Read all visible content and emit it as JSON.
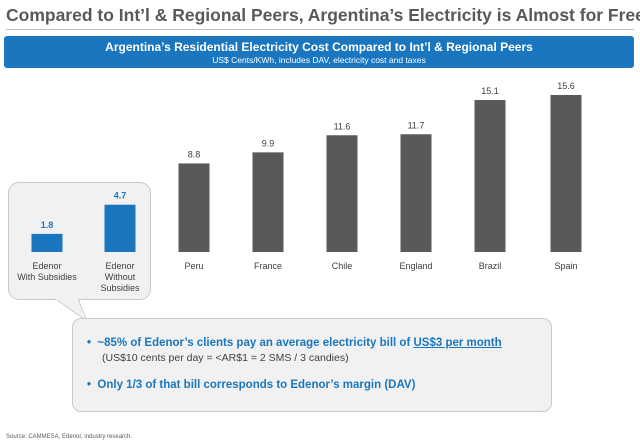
{
  "slide": {
    "title": "Compared to Int’l & Regional Peers, Argentina’s Electricity is Almost for Free",
    "banner_title": "Argentina’s Residential Electricity Cost Compared to Int’l & Regional Peers",
    "banner_subtitle": "US$ Cents/KWh, includes DAV, electricity cost and taxes",
    "source": "Source: CAMMESA, Edenor, industry research."
  },
  "callout": {
    "bullet1_prefix": "~85% of Edenor’s clients pay an average electricity bill of ",
    "bullet1_highlight": "US$3 per month",
    "bullet1_sub": "(US$10 cents per day = <AR$1 = 2 SMS / 3 candies)",
    "bullet2": "Only 1/3 of that bill corresponds to Edenor’s margin (DAV)"
  },
  "chart_data": {
    "type": "bar",
    "categories": [
      [
        "Edenor",
        "With Subsidies"
      ],
      [
        "Edenor",
        "Without",
        "Subsidies"
      ],
      [
        "Peru"
      ],
      [
        "France"
      ],
      [
        "Chile"
      ],
      [
        "England"
      ],
      [
        "Brazil"
      ],
      [
        "Spain"
      ]
    ],
    "values": [
      1.8,
      4.7,
      8.8,
      9.9,
      11.6,
      11.7,
      15.1,
      15.6
    ],
    "value_labels": [
      "1.8",
      "4.7",
      "8.8",
      "9.9",
      "11.6",
      "11.7",
      "15.1",
      "15.6"
    ],
    "colors": [
      "#1a76bf",
      "#1a76bf",
      "#595959",
      "#595959",
      "#595959",
      "#595959",
      "#595959",
      "#595959"
    ],
    "label_colors": [
      "#1a76bf",
      "#1a76bf",
      "#404040",
      "#404040",
      "#404040",
      "#404040",
      "#404040",
      "#404040"
    ],
    "ylim": [
      0,
      15.6
    ],
    "grid": false,
    "legend": "none"
  }
}
